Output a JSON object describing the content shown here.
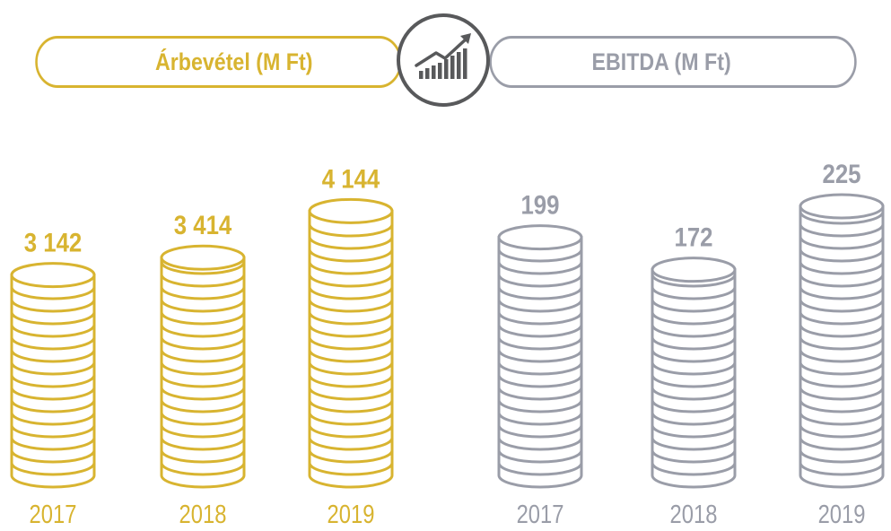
{
  "chart_data": [
    {
      "type": "bar",
      "title": "Árbevétel (M Ft)",
      "categories": [
        "2017",
        "2018",
        "2019"
      ],
      "values": [
        3142,
        3414,
        4144
      ],
      "value_labels": [
        "3 142",
        "3 414",
        "4 144"
      ],
      "color": "#D8B430",
      "ylim": [
        0,
        4500
      ]
    },
    {
      "type": "bar",
      "title": "EBITDA (M Ft)",
      "categories": [
        "2017",
        "2018",
        "2019"
      ],
      "values": [
        199,
        172,
        225
      ],
      "value_labels": [
        "199",
        "172",
        "225"
      ],
      "color": "#9A9DA8",
      "ylim": [
        0,
        240
      ]
    }
  ],
  "colors": {
    "gold": "#D8B430",
    "gray": "#9A9DA8",
    "badge": "#58595B"
  },
  "badge": {
    "icon": "growth-chart-icon"
  }
}
